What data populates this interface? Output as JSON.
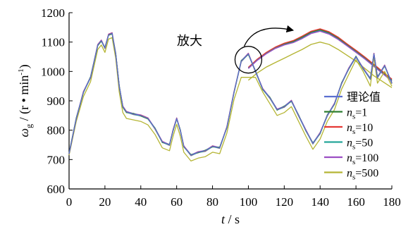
{
  "chart_data": {
    "type": "line",
    "title": "",
    "xlabel": {
      "symbol": "t",
      "unit": " / s"
    },
    "ylabel": {
      "symbol": "ω",
      "sub": "g",
      "unit": " / (r • min",
      "sup": "-1",
      "close": ")"
    },
    "xlim": [
      0,
      180
    ],
    "ylim": [
      600,
      1200
    ],
    "xticks": [
      0,
      20,
      40,
      60,
      80,
      100,
      120,
      140,
      160,
      180
    ],
    "yticks": [
      600,
      700,
      800,
      900,
      1000,
      1100,
      1200
    ],
    "grid": false,
    "legend_position": "right",
    "annotation": {
      "text": "放大",
      "circle_center": [
        100,
        1040
      ],
      "arrow_to": [
        125,
        1140
      ]
    },
    "series": [
      {
        "name": "理论值",
        "label": {
          "text": "理论值"
        },
        "color": "#5b6fd0",
        "x": [
          0,
          4,
          8,
          12,
          16,
          18,
          20,
          22,
          24,
          26,
          28,
          30,
          32,
          36,
          40,
          44,
          48,
          52,
          56,
          58,
          60,
          62,
          64,
          68,
          72,
          76,
          80,
          84,
          88,
          92,
          96,
          100,
          104,
          108,
          112,
          116,
          120,
          124,
          128,
          132,
          136,
          140,
          144,
          148,
          152,
          156,
          160,
          164,
          168,
          170,
          172,
          176,
          180
        ],
        "y": [
          720,
          840,
          930,
          980,
          1090,
          1105,
          1080,
          1125,
          1130,
          1060,
          950,
          880,
          862,
          855,
          850,
          840,
          805,
          760,
          750,
          800,
          840,
          800,
          745,
          715,
          725,
          730,
          745,
          740,
          810,
          930,
          1035,
          1060,
          1000,
          940,
          910,
          870,
          880,
          900,
          850,
          800,
          755,
          790,
          850,
          890,
          960,
          1010,
          1050,
          1010,
          975,
          1060,
          980,
          1020,
          960
        ]
      },
      {
        "name": "ns=1",
        "label": {
          "n": "n",
          "sub": "s",
          "eq": "=1"
        },
        "color": "#2e7d32",
        "x": [
          0,
          4,
          8,
          12,
          16,
          18,
          20,
          22,
          24,
          26,
          28,
          30,
          32,
          36,
          40,
          44,
          48,
          52,
          56,
          58,
          60,
          62,
          64,
          68,
          72,
          76,
          80,
          84,
          88,
          92,
          96,
          100,
          104,
          108,
          112,
          116,
          120,
          124,
          128,
          132,
          136,
          140,
          144,
          148,
          152,
          156,
          160,
          164,
          168,
          170,
          172,
          176,
          180
        ],
        "y": [
          722,
          842,
          928,
          982,
          1088,
          1103,
          1082,
          1123,
          1128,
          1062,
          952,
          878,
          860,
          857,
          848,
          838,
          807,
          758,
          752,
          798,
          838,
          802,
          743,
          717,
          723,
          732,
          743,
          742,
          808,
          928,
          1037,
          1058,
          1002,
          938,
          912,
          868,
          882,
          898,
          852,
          798,
          757,
          788,
          852,
          888,
          962,
          1008,
          1052,
          1008,
          977,
          1058,
          982,
          1018,
          962
        ]
      },
      {
        "name": "ns=10",
        "label": {
          "n": "n",
          "sub": "s",
          "eq": "=10"
        },
        "color": "#e53935",
        "x": [
          0,
          4,
          8,
          12,
          16,
          18,
          20,
          22,
          24,
          26,
          28,
          30,
          32,
          36,
          40,
          44,
          48,
          52,
          56,
          58,
          60,
          62,
          64,
          68,
          72,
          76,
          80,
          84,
          88,
          92,
          96,
          100,
          104,
          108,
          112,
          116,
          120,
          124,
          128,
          132,
          136,
          140,
          144,
          148,
          152,
          156,
          160,
          164,
          168,
          170,
          172,
          176,
          180
        ],
        "y": [
          719,
          839,
          931,
          979,
          1091,
          1106,
          1079,
          1126,
          1131,
          1059,
          949,
          881,
          863,
          854,
          851,
          841,
          804,
          761,
          749,
          801,
          841,
          799,
          746,
          714,
          726,
          729,
          746,
          739,
          811,
          931,
          1034,
          1061,
          999,
          941,
          909,
          871,
          879,
          901,
          849,
          801,
          754,
          791,
          849,
          891,
          959,
          1011,
          1049,
          1011,
          974,
          1061,
          979,
          1021,
          959
        ]
      },
      {
        "name": "ns=50",
        "label": {
          "n": "n",
          "sub": "s",
          "eq": "=50"
        },
        "color": "#26a69a",
        "x": [
          0,
          4,
          8,
          12,
          16,
          18,
          20,
          22,
          24,
          26,
          28,
          30,
          32,
          36,
          40,
          44,
          48,
          52,
          56,
          58,
          60,
          62,
          64,
          68,
          72,
          76,
          80,
          84,
          88,
          92,
          96,
          100,
          104,
          108,
          112,
          116,
          120,
          124,
          128,
          132,
          136,
          140,
          144,
          148,
          152,
          156,
          160,
          164,
          168,
          170,
          172,
          176,
          180
        ],
        "y": [
          718,
          838,
          929,
          978,
          1089,
          1104,
          1078,
          1124,
          1129,
          1058,
          948,
          879,
          861,
          853,
          849,
          839,
          803,
          759,
          748,
          799,
          839,
          798,
          744,
          713,
          724,
          728,
          744,
          738,
          809,
          929,
          1033,
          1059,
          998,
          939,
          908,
          869,
          878,
          899,
          848,
          799,
          753,
          789,
          848,
          889,
          958,
          1009,
          1048,
          1009,
          973,
          1059,
          978,
          1019,
          958
        ]
      },
      {
        "name": "ns=100",
        "label": {
          "n": "n",
          "sub": "s",
          "eq": "=100"
        },
        "color": "#9c4fc4",
        "x": [
          0,
          4,
          8,
          12,
          16,
          18,
          20,
          22,
          24,
          26,
          28,
          30,
          32,
          36,
          40,
          44,
          48,
          52,
          56,
          58,
          60,
          62,
          64,
          68,
          72,
          76,
          80,
          84,
          88,
          92,
          96,
          100,
          104,
          108,
          112,
          116,
          120,
          124,
          128,
          132,
          136,
          140,
          144,
          148,
          152,
          156,
          160,
          164,
          168,
          170,
          172,
          176,
          180
        ],
        "y": [
          721,
          841,
          932,
          981,
          1092,
          1107,
          1081,
          1127,
          1132,
          1061,
          951,
          882,
          864,
          856,
          852,
          842,
          806,
          762,
          751,
          802,
          842,
          801,
          747,
          716,
          727,
          731,
          747,
          741,
          812,
          932,
          1036,
          1062,
          1001,
          942,
          911,
          872,
          881,
          902,
          851,
          802,
          756,
          792,
          851,
          892,
          961,
          1012,
          1051,
          1012,
          976,
          1062,
          981,
          1022,
          961
        ]
      },
      {
        "name": "ns=500",
        "label": {
          "n": "n",
          "sub": "s",
          "eq": "=500"
        },
        "color": "#b5b534",
        "x": [
          0,
          4,
          8,
          12,
          16,
          18,
          20,
          22,
          24,
          26,
          28,
          30,
          32,
          36,
          40,
          44,
          48,
          52,
          56,
          58,
          60,
          62,
          64,
          68,
          72,
          76,
          80,
          84,
          88,
          92,
          96,
          100,
          104,
          108,
          112,
          116,
          120,
          124,
          128,
          132,
          136,
          140,
          144,
          148,
          152,
          156,
          160,
          164,
          168,
          170,
          172,
          176,
          180
        ],
        "y": [
          715,
          830,
          915,
          965,
          1075,
          1090,
          1065,
          1110,
          1115,
          1045,
          930,
          860,
          840,
          835,
          830,
          818,
          785,
          740,
          730,
          780,
          820,
          780,
          725,
          695,
          705,
          710,
          725,
          720,
          790,
          905,
          980,
          980,
          980,
          930,
          890,
          850,
          860,
          880,
          830,
          780,
          735,
          770,
          830,
          870,
          940,
          990,
          1040,
          1000,
          950,
          1050,
          960,
          1000,
          950
        ]
      }
    ],
    "zoom_curves": {
      "x": [
        100,
        105,
        110,
        115,
        120,
        125,
        130,
        135,
        140,
        145,
        150,
        155,
        160,
        165,
        170,
        175,
        180
      ],
      "series": [
        {
          "name": "理论值",
          "y": [
            1012,
            1040,
            1062,
            1080,
            1092,
            1100,
            1115,
            1132,
            1140,
            1130,
            1112,
            1090,
            1068,
            1045,
            1020,
            995,
            970
          ]
        },
        {
          "name": "ns=1",
          "y": [
            1013,
            1041,
            1063,
            1081,
            1094,
            1102,
            1117,
            1134,
            1142,
            1132,
            1114,
            1092,
            1070,
            1047,
            1022,
            997,
            972
          ]
        },
        {
          "name": "ns=10",
          "y": [
            1014,
            1042,
            1065,
            1083,
            1096,
            1105,
            1120,
            1137,
            1145,
            1135,
            1117,
            1094,
            1072,
            1049,
            1024,
            999,
            974
          ]
        },
        {
          "name": "ns=50",
          "y": [
            1011,
            1039,
            1061,
            1079,
            1091,
            1099,
            1113,
            1130,
            1138,
            1128,
            1110,
            1088,
            1066,
            1043,
            1018,
            993,
            968
          ]
        },
        {
          "name": "ns=100",
          "y": [
            1010,
            1038,
            1060,
            1078,
            1090,
            1098,
            1112,
            1129,
            1137,
            1127,
            1109,
            1087,
            1065,
            1042,
            1017,
            992,
            967
          ]
        },
        {
          "name": "ns=500",
          "y": [
            970,
            995,
            1015,
            1030,
            1045,
            1060,
            1075,
            1092,
            1100,
            1092,
            1075,
            1055,
            1035,
            1010,
            985,
            965,
            945
          ]
        }
      ]
    }
  }
}
